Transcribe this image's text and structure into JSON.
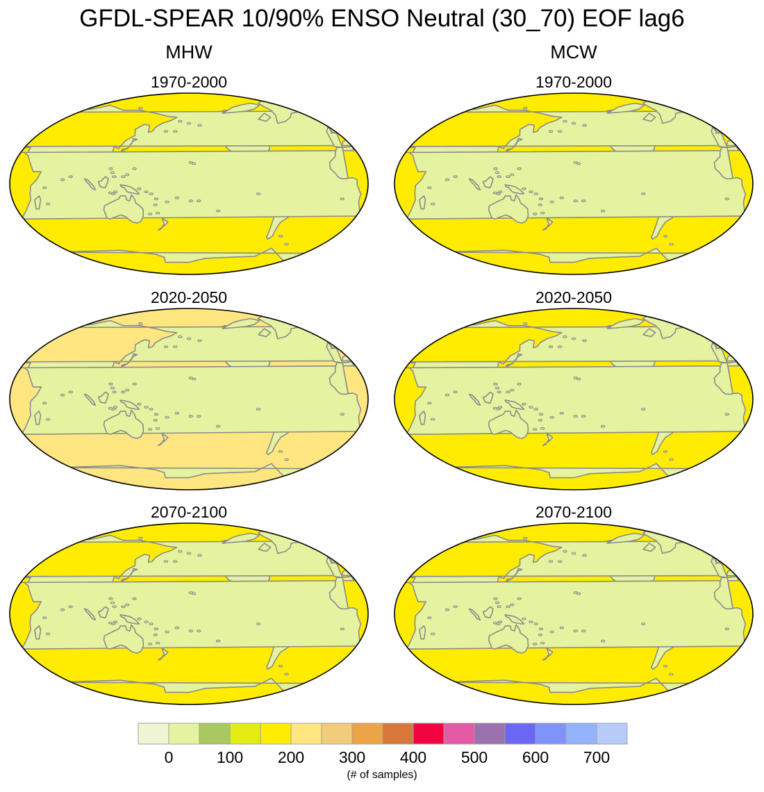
{
  "title": "GFDL-SPEAR 10/90% ENSO Neutral (30_70) EOF lag6",
  "columns": [
    {
      "title": "MHW",
      "panels": [
        {
          "title": "1970-2000",
          "ocean_color": "#ffec00"
        },
        {
          "title": "2020-2050",
          "ocean_color": "#ffe680"
        },
        {
          "title": "2070-2100",
          "ocean_color": "#ffec00"
        }
      ]
    },
    {
      "title": "MCW",
      "panels": [
        {
          "title": "1970-2000",
          "ocean_color": "#ffec00"
        },
        {
          "title": "2020-2050",
          "ocean_color": "#ffec00"
        },
        {
          "title": "2070-2100",
          "ocean_color": "#ffec00"
        }
      ]
    }
  ],
  "land_color": "#e5f3a0",
  "coast_color": "#8a8a8a",
  "colorbar": {
    "colors": [
      "#eef5d2",
      "#e5f3a0",
      "#a9c860",
      "#e3ed13",
      "#ffec00",
      "#ffe680",
      "#f2cc7b",
      "#eba546",
      "#d8793b",
      "#f10440",
      "#e55aa5",
      "#9a70af",
      "#6a67f6",
      "#8093fb",
      "#93b3fc",
      "#b7cbfb"
    ],
    "tick_labels": [
      "0",
      "100",
      "200",
      "300",
      "400",
      "500",
      "600",
      "700"
    ],
    "unit_label": "(# of samples)"
  }
}
